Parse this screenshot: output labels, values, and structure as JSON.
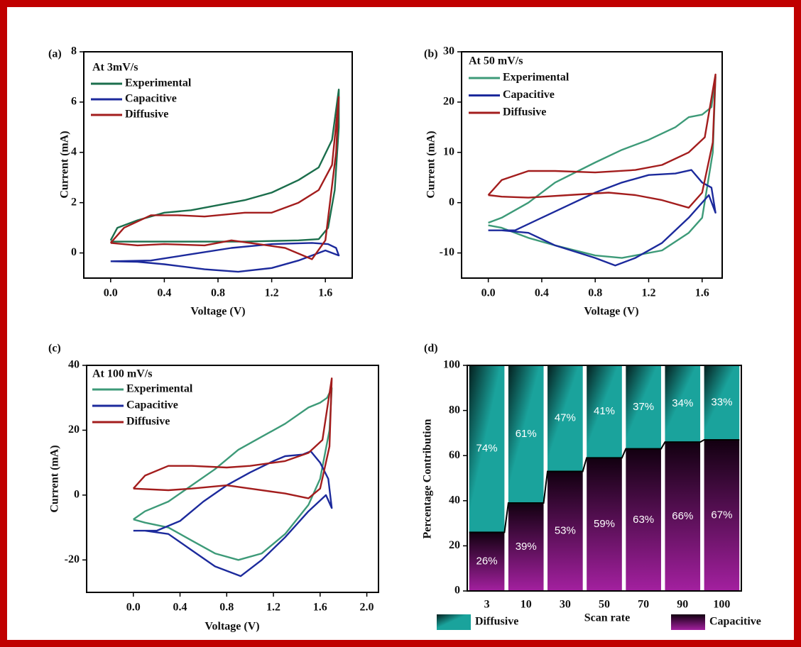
{
  "chart_data": [
    {
      "type": "line",
      "panel_label": "(a)",
      "annotation": "At 3mV/s",
      "xlabel": "Voltage (V)",
      "ylabel": "Current (mA)",
      "legend": "upper left",
      "xlim": [
        -0.2,
        1.8
      ],
      "xticks": [
        {
          "value": 0,
          "label": "0.0"
        },
        0.4,
        0.8,
        1.2,
        1.6
      ],
      "ylim": [
        -1,
        8
      ],
      "yticks": [
        0,
        2,
        4,
        6,
        8
      ],
      "series": [
        {
          "name": "Experimental",
          "color": "#1b6e4c",
          "x": [
            0,
            0.05,
            0.2,
            0.4,
            0.6,
            0.8,
            1.0,
            1.2,
            1.4,
            1.55,
            1.65,
            1.7,
            1.7,
            1.67,
            1.62,
            1.55,
            1.4,
            1.0,
            0.6,
            0.2,
            0
          ],
          "values": [
            0.5,
            1.0,
            1.3,
            1.6,
            1.7,
            1.9,
            2.1,
            2.4,
            2.9,
            3.4,
            4.5,
            6.5,
            5.0,
            2.5,
            1.0,
            0.55,
            0.5,
            0.45,
            0.45,
            0.45,
            0.45
          ]
        },
        {
          "name": "Capacitive",
          "color": "#1c2a9c",
          "x": [
            0,
            0.3,
            0.6,
            0.9,
            1.2,
            1.5,
            1.62,
            1.68,
            1.7,
            1.6,
            1.4,
            1.2,
            0.95,
            0.7,
            0.4,
            0.2,
            0
          ],
          "values": [
            -0.33,
            -0.3,
            -0.05,
            0.2,
            0.35,
            0.4,
            0.35,
            0.2,
            -0.1,
            0.1,
            -0.3,
            -0.6,
            -0.75,
            -0.65,
            -0.45,
            -0.35,
            -0.33
          ]
        },
        {
          "name": "Diffusive",
          "color": "#a31d1d",
          "x": [
            0,
            0.1,
            0.3,
            0.5,
            0.7,
            1.0,
            1.2,
            1.4,
            1.55,
            1.65,
            1.7,
            1.68,
            1.6,
            1.5,
            1.3,
            1.1,
            0.9,
            0.7,
            0.4,
            0.2,
            0
          ],
          "values": [
            0.4,
            1.0,
            1.5,
            1.5,
            1.45,
            1.6,
            1.6,
            2.0,
            2.5,
            3.5,
            6.2,
            4.0,
            0.5,
            -0.25,
            0.2,
            0.35,
            0.5,
            0.3,
            0.35,
            0.3,
            0.4
          ]
        }
      ]
    },
    {
      "type": "line",
      "panel_label": "(b)",
      "annotation": "At 50 mV/s",
      "xlabel": "Voltage (V)",
      "ylabel": "Current (mA)",
      "legend": "upper left",
      "xlim": [
        -0.2,
        1.75
      ],
      "xticks": [
        {
          "value": 0,
          "label": "0.0"
        },
        0.4,
        0.8,
        1.2,
        1.6
      ],
      "ylim": [
        -15,
        30
      ],
      "yticks": [
        -10,
        0,
        10,
        20,
        30
      ],
      "series": [
        {
          "name": "Experimental",
          "color": "#3d9a78",
          "x": [
            0,
            0.1,
            0.3,
            0.5,
            0.8,
            1.0,
            1.2,
            1.4,
            1.5,
            1.6,
            1.67,
            1.7,
            1.68,
            1.6,
            1.5,
            1.3,
            1.0,
            0.8,
            0.5,
            0.3,
            0.1,
            0
          ],
          "values": [
            -4,
            -3,
            0,
            4,
            8,
            10.5,
            12.5,
            15,
            17,
            17.5,
            19,
            25,
            10,
            -3,
            -6,
            -9.5,
            -11,
            -10.5,
            -8.5,
            -7,
            -5,
            -4.5
          ]
        },
        {
          "name": "Capacitive",
          "color": "#1c2a9c",
          "x": [
            0,
            0.2,
            0.4,
            0.6,
            0.8,
            1.0,
            1.2,
            1.4,
            1.52,
            1.6,
            1.67,
            1.7,
            1.65,
            1.5,
            1.3,
            1.1,
            0.95,
            0.8,
            0.5,
            0.3,
            0.1,
            0
          ],
          "values": [
            -5.5,
            -5.5,
            -3,
            -0.5,
            2,
            4,
            5.5,
            5.8,
            6.5,
            4,
            3,
            -2,
            1.5,
            -3,
            -8,
            -11,
            -12.5,
            -11,
            -8.5,
            -6,
            -5.5,
            -5.5
          ]
        },
        {
          "name": "Diffusive",
          "color": "#a31d1d",
          "x": [
            0,
            0.1,
            0.3,
            0.5,
            0.8,
            1.1,
            1.3,
            1.5,
            1.62,
            1.7,
            1.68,
            1.6,
            1.5,
            1.3,
            1.1,
            0.9,
            0.6,
            0.3,
            0.1,
            0
          ],
          "values": [
            1.5,
            4.5,
            6.3,
            6.3,
            6,
            6.5,
            7.5,
            10,
            13,
            25.5,
            12,
            2,
            -1,
            0.5,
            1.5,
            2,
            1.5,
            1,
            1.2,
            1.5
          ]
        }
      ]
    },
    {
      "type": "line",
      "panel_label": "(c)",
      "annotation": "At 100 mV/s",
      "xlabel": "Voltage (V)",
      "ylabel": "Current (mA)",
      "legend": "upper left",
      "xlim": [
        -0.4,
        2.1
      ],
      "xticks": [
        {
          "value": 0,
          "label": "0.0"
        },
        0.4,
        0.8,
        1.2,
        1.6,
        {
          "value": 2,
          "label": "2.0"
        }
      ],
      "ylim": [
        -30,
        40
      ],
      "yticks": [
        -20,
        0,
        20,
        40
      ],
      "series": [
        {
          "name": "Experimental",
          "color": "#3d9a78",
          "x": [
            0,
            0.1,
            0.3,
            0.5,
            0.7,
            0.9,
            1.1,
            1.3,
            1.5,
            1.6,
            1.66,
            1.7,
            1.68,
            1.6,
            1.5,
            1.3,
            1.1,
            0.9,
            0.7,
            0.5,
            0.3,
            0.1,
            0
          ],
          "values": [
            -7.5,
            -5,
            -2,
            3,
            8,
            14,
            18,
            22,
            27,
            28.5,
            30,
            33,
            20,
            5,
            -3,
            -12,
            -18,
            -20,
            -18,
            -14,
            -10,
            -8.5,
            -7.5
          ]
        },
        {
          "name": "Capacitive",
          "color": "#1c2a9c",
          "x": [
            0,
            0.2,
            0.4,
            0.6,
            0.8,
            1.0,
            1.2,
            1.3,
            1.45,
            1.52,
            1.6,
            1.67,
            1.7,
            1.65,
            1.5,
            1.3,
            1.1,
            0.92,
            0.7,
            0.5,
            0.3,
            0.1,
            0
          ],
          "values": [
            -11,
            -11,
            -8,
            -2,
            3,
            7,
            10.5,
            12,
            12.5,
            13.5,
            10,
            5,
            -4,
            0,
            -5,
            -13,
            -20,
            -25,
            -22,
            -17,
            -12,
            -11,
            -11
          ]
        },
        {
          "name": "Diffusive",
          "color": "#a31d1d",
          "x": [
            0,
            0.1,
            0.3,
            0.5,
            0.8,
            1.0,
            1.3,
            1.5,
            1.62,
            1.7,
            1.68,
            1.6,
            1.5,
            1.3,
            1.0,
            0.8,
            0.5,
            0.3,
            0
          ],
          "values": [
            2,
            6,
            9,
            9,
            8.5,
            9,
            10.5,
            13,
            17,
            36,
            15,
            2,
            -1,
            0.5,
            2,
            3,
            2,
            1.5,
            2
          ]
        }
      ]
    },
    {
      "type": "stacked_bar",
      "panel_label": "(d)",
      "xlabel": "Scan rate",
      "ylabel": "Percentage Contribution",
      "legend": "below",
      "categories": [
        "3",
        "10",
        "30",
        "50",
        "70",
        "90",
        "100"
      ],
      "ylim": [
        0,
        100
      ],
      "yticks": [
        0,
        20,
        40,
        60,
        80,
        100
      ],
      "series": [
        {
          "name": "Capacitive",
          "color": "#a3209f",
          "values": [
            26,
            39,
            53,
            59,
            63,
            66,
            67
          ],
          "value_labels": [
            "26%",
            "39%",
            "53%",
            "59%",
            "63%",
            "66%",
            "67%"
          ]
        },
        {
          "name": "Diffusive",
          "color": "#1aa39c",
          "values": [
            74,
            61,
            47,
            41,
            37,
            34,
            33
          ],
          "value_labels": [
            "74%",
            "61%",
            "47%",
            "41%",
            "37%",
            "34%",
            "33%"
          ]
        }
      ]
    }
  ]
}
